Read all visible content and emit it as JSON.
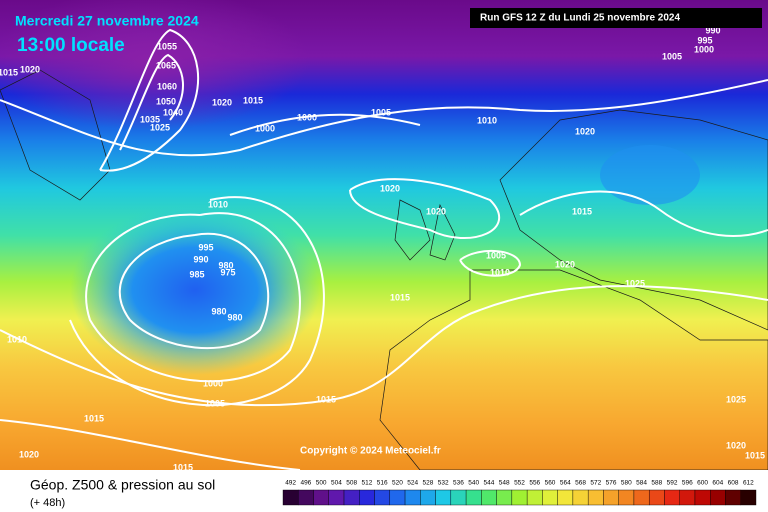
{
  "header": {
    "date": "Mercredi 27 novembre 2024",
    "time": "13:00 locale",
    "run": "Run GFS 12 Z du Lundi 25 novembre 2024"
  },
  "copyright": "Copyright © 2024 Meteociel.fr",
  "footer": {
    "title": "Géop. Z500 & pression au sol",
    "lead": "(+ 48h)"
  },
  "isobar_labels": [
    1055,
    1065,
    1060,
    1050,
    1040,
    1035,
    1025,
    1020,
    1015,
    1020,
    1015,
    1000,
    1000,
    1005,
    1010,
    1020,
    1005,
    1000,
    995,
    990,
    1020,
    1020,
    1015,
    1010,
    995,
    990,
    985,
    980,
    975,
    980,
    980,
    1005,
    1010,
    1020,
    1025,
    1015,
    1010,
    1000,
    1005,
    1015,
    1015,
    1020,
    1015,
    1025,
    1020,
    1015
  ],
  "scale": [
    492,
    496,
    500,
    504,
    508,
    512,
    516,
    520,
    524,
    528,
    532,
    536,
    540,
    544,
    548,
    552,
    556,
    560,
    564,
    568,
    572,
    576,
    580,
    584,
    588,
    592,
    596,
    600,
    604,
    608,
    612
  ]
}
